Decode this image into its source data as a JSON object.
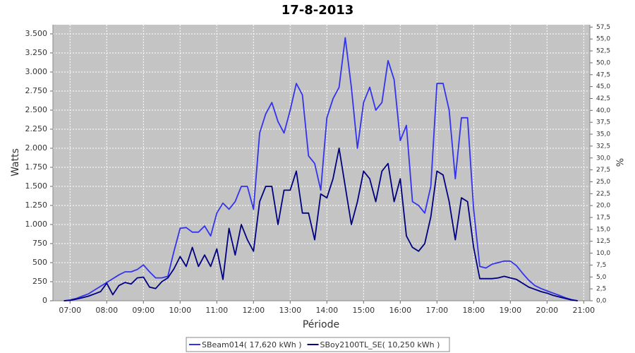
{
  "chart_data": {
    "type": "line",
    "title": "17-8-2013",
    "x_label": "Période",
    "y_label": "Watts",
    "y2_label": "%",
    "x": [
      "06:50",
      "07:00",
      "07:10",
      "07:20",
      "07:30",
      "07:40",
      "07:50",
      "08:00",
      "08:10",
      "08:20",
      "08:30",
      "08:40",
      "08:50",
      "09:00",
      "09:10",
      "09:20",
      "09:30",
      "09:40",
      "09:50",
      "10:00",
      "10:10",
      "10:20",
      "10:30",
      "10:40",
      "10:50",
      "11:00",
      "11:10",
      "11:20",
      "11:30",
      "11:40",
      "11:50",
      "12:00",
      "12:10",
      "12:20",
      "12:30",
      "12:40",
      "12:50",
      "13:00",
      "13:10",
      "13:20",
      "13:30",
      "13:40",
      "13:50",
      "14:00",
      "14:10",
      "14:20",
      "14:30",
      "14:40",
      "14:50",
      "15:00",
      "15:10",
      "15:20",
      "15:30",
      "15:40",
      "15:50",
      "16:00",
      "16:10",
      "16:20",
      "16:30",
      "16:40",
      "16:50",
      "17:00",
      "17:10",
      "17:20",
      "17:30",
      "17:40",
      "17:50",
      "18:00",
      "18:10",
      "18:20",
      "18:30",
      "18:40",
      "18:50",
      "19:00",
      "19:10",
      "19:20",
      "19:30",
      "19:40",
      "19:50",
      "20:00",
      "20:10",
      "20:20",
      "20:30",
      "20:40",
      "20:50"
    ],
    "series": [
      {
        "name": "SBeam014( 17,620 kWh )",
        "color": "#3333ee",
        "values": [
          0,
          10,
          30,
          60,
          90,
          140,
          190,
          240,
          290,
          340,
          380,
          380,
          410,
          470,
          380,
          300,
          300,
          320,
          650,
          950,
          960,
          900,
          900,
          980,
          850,
          1150,
          1280,
          1200,
          1300,
          1500,
          1500,
          1200,
          2200,
          2450,
          2600,
          2350,
          2200,
          2500,
          2850,
          2700,
          1900,
          1800,
          1450,
          2400,
          2650,
          2800,
          3450,
          2800,
          2000,
          2600,
          2800,
          2500,
          2600,
          3150,
          2900,
          2100,
          2300,
          1300,
          1250,
          1150,
          1500,
          2850,
          2850,
          2500,
          1600,
          2400,
          2400,
          1200,
          450,
          430,
          480,
          500,
          520,
          520,
          460,
          360,
          270,
          200,
          160,
          130,
          100,
          70,
          40,
          15,
          0
        ]
      },
      {
        "name": "SBoy2100TL_SE( 10,250 kWh )",
        "color": "#000080",
        "values": [
          0,
          5,
          20,
          40,
          60,
          90,
          120,
          230,
          80,
          200,
          240,
          220,
          300,
          310,
          180,
          160,
          250,
          300,
          420,
          580,
          450,
          700,
          450,
          600,
          450,
          680,
          280,
          950,
          600,
          1000,
          800,
          650,
          1300,
          1500,
          1500,
          1000,
          1450,
          1450,
          1700,
          1150,
          1150,
          800,
          1400,
          1350,
          1600,
          2000,
          1500,
          1000,
          1300,
          1700,
          1600,
          1300,
          1700,
          1800,
          1300,
          1600,
          850,
          700,
          650,
          750,
          1100,
          1700,
          1650,
          1300,
          800,
          1350,
          1300,
          700,
          290,
          290,
          290,
          300,
          320,
          300,
          280,
          230,
          180,
          150,
          120,
          100,
          70,
          50,
          30,
          10,
          0
        ]
      }
    ],
    "xlim": [
      "06:32",
      "21:10"
    ],
    "xticks": [
      "07:00",
      "08:00",
      "09:00",
      "10:00",
      "11:00",
      "12:00",
      "13:00",
      "14:00",
      "15:00",
      "16:00",
      "17:00",
      "18:00",
      "19:00",
      "20:00",
      "21:00"
    ],
    "ylim": [
      0,
      3620
    ],
    "yticks": [
      0,
      250,
      500,
      750,
      {
        "value": 1000,
        "label": "1.000"
      },
      {
        "value": 1250,
        "label": "1.250"
      },
      {
        "value": 1500,
        "label": "1.500"
      },
      {
        "value": 1750,
        "label": "1.750"
      },
      {
        "value": 2000,
        "label": "2.000"
      },
      {
        "value": 2250,
        "label": "2.250"
      },
      {
        "value": 2500,
        "label": "2.500"
      },
      {
        "value": 2750,
        "label": "2.750"
      },
      {
        "value": 3000,
        "label": "3.000"
      },
      {
        "value": 3250,
        "label": "3.250"
      },
      {
        "value": 3500,
        "label": "3.500"
      }
    ],
    "y2lim": [
      0,
      58
    ],
    "y2ticks": [
      {
        "value": 0,
        "label": "0,0"
      },
      {
        "value": 2.5,
        "label": "2,5"
      },
      {
        "value": 5,
        "label": "5,0"
      },
      {
        "value": 7.5,
        "label": "7,5"
      },
      {
        "value": 10,
        "label": "10,0"
      },
      {
        "value": 12.5,
        "label": "12,5"
      },
      {
        "value": 15,
        "label": "15,0"
      },
      {
        "value": 17.5,
        "label": "17,5"
      },
      {
        "value": 20,
        "label": "20,0"
      },
      {
        "value": 22.5,
        "label": "22,5"
      },
      {
        "value": 25,
        "label": "25,0"
      },
      {
        "value": 27.5,
        "label": "27,5"
      },
      {
        "value": 30,
        "label": "30,0"
      },
      {
        "value": 32.5,
        "label": "32,5"
      },
      {
        "value": 35,
        "label": "35,0"
      },
      {
        "value": 37.5,
        "label": "37,5"
      },
      {
        "value": 40,
        "label": "40,0"
      },
      {
        "value": 42.5,
        "label": "42,5"
      },
      {
        "value": 45,
        "label": "45,0"
      },
      {
        "value": 47.5,
        "label": "47,5"
      },
      {
        "value": 50,
        "label": "50,0"
      },
      {
        "value": 52.5,
        "label": "52,5"
      },
      {
        "value": 55,
        "label": "55,0"
      },
      {
        "value": 57.5,
        "label": "57,5"
      }
    ],
    "grid": true,
    "legend": "bottom"
  }
}
